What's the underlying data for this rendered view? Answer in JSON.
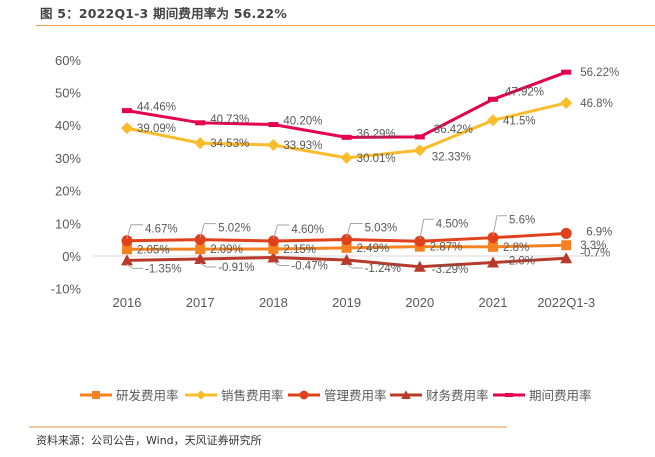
{
  "title": "图 5：2022Q1-3 期间费用率为 56.22%",
  "source": "资料来源：公司公告，Wind，天风证券研究所",
  "chart_data": {
    "type": "line",
    "title": "图 5：2022Q1-3 期间费用率为 56.22%",
    "xlabel": "",
    "ylabel": "",
    "categories": [
      "2016",
      "2017",
      "2018",
      "2019",
      "2020",
      "2021",
      "2022Q1-3"
    ],
    "ylim": [
      -10,
      60
    ],
    "yticks": [
      -10,
      0,
      10,
      20,
      30,
      40,
      50,
      60
    ],
    "ytick_labels": [
      "-10%",
      "0%",
      "10%",
      "20%",
      "30%",
      "40%",
      "50%",
      "60%"
    ],
    "grid": false,
    "legend_position": "bottom",
    "series": [
      {
        "name": "研发费用率",
        "color": "#f58220",
        "marker": "square",
        "values": [
          2.05,
          2.09,
          2.15,
          2.49,
          2.87,
          2.8,
          3.3
        ],
        "labels": [
          "2.05%",
          "2.09%",
          "2.15%",
          "2.49%",
          "2.87%",
          "2.8%",
          "3.3%"
        ]
      },
      {
        "name": "销售费用率",
        "color": "#fbbc2c",
        "marker": "diamond",
        "values": [
          39.09,
          34.53,
          33.93,
          30.01,
          32.33,
          41.5,
          46.8
        ],
        "labels": [
          "39.09%",
          "34.53%",
          "33.93%",
          "30.01%",
          "32.33%",
          "41.5%",
          "46.8%"
        ]
      },
      {
        "name": "管理费用率",
        "color": "#e0401a",
        "marker": "circle",
        "values": [
          4.67,
          5.02,
          4.6,
          5.03,
          4.5,
          5.6,
          6.9
        ],
        "labels": [
          "4.67%",
          "5.02%",
          "4.60%",
          "5.03%",
          "4.50%",
          "5.6%",
          "6.9%"
        ]
      },
      {
        "name": "财务费用率",
        "color": "#b83a2a",
        "marker": "triangle",
        "values": [
          -1.35,
          -0.91,
          -0.47,
          -1.24,
          -3.29,
          -2.0,
          -0.7
        ],
        "labels": [
          "-1.35%",
          "-0.91%",
          "-0.47%",
          "-1.24%",
          "-3.29%",
          "-2.0%",
          "-0.7%"
        ]
      },
      {
        "name": "期间费用率",
        "color": "#e3004f",
        "marker": "dash",
        "values": [
          44.46,
          40.73,
          40.2,
          36.29,
          36.42,
          47.92,
          56.22
        ],
        "labels": [
          "44.46%",
          "40.73%",
          "40.20%",
          "36.29%",
          "36.42%",
          "47.92%",
          "56.22%"
        ]
      }
    ]
  }
}
